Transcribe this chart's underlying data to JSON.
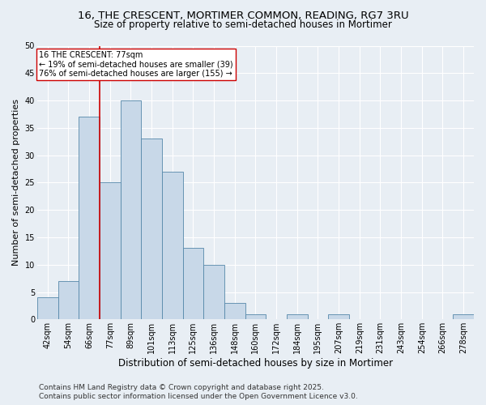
{
  "title_line1": "16, THE CRESCENT, MORTIMER COMMON, READING, RG7 3RU",
  "title_line2": "Size of property relative to semi-detached houses in Mortimer",
  "xlabel": "Distribution of semi-detached houses by size in Mortimer",
  "ylabel": "Number of semi-detached properties",
  "categories": [
    "42sqm",
    "54sqm",
    "66sqm",
    "77sqm",
    "89sqm",
    "101sqm",
    "113sqm",
    "125sqm",
    "136sqm",
    "148sqm",
    "160sqm",
    "172sqm",
    "184sqm",
    "195sqm",
    "207sqm",
    "219sqm",
    "231sqm",
    "243sqm",
    "254sqm",
    "266sqm",
    "278sqm"
  ],
  "values": [
    4,
    7,
    37,
    25,
    40,
    33,
    27,
    13,
    10,
    3,
    1,
    0,
    1,
    0,
    1,
    0,
    0,
    0,
    0,
    0,
    1
  ],
  "bar_color": "#c8d8e8",
  "bar_edge_color": "#5588aa",
  "background_color": "#e8eef4",
  "grid_color": "#ffffff",
  "vline_index": 3,
  "vline_color": "#cc0000",
  "annotation_text": "16 THE CRESCENT: 77sqm\n← 19% of semi-detached houses are smaller (39)\n76% of semi-detached houses are larger (155) →",
  "annotation_box_color": "#ffffff",
  "annotation_box_edge": "#cc0000",
  "ylim": [
    0,
    50
  ],
  "yticks": [
    0,
    5,
    10,
    15,
    20,
    25,
    30,
    35,
    40,
    45,
    50
  ],
  "footer_line1": "Contains HM Land Registry data © Crown copyright and database right 2025.",
  "footer_line2": "Contains public sector information licensed under the Open Government Licence v3.0.",
  "title_fontsize": 9.5,
  "subtitle_fontsize": 8.5,
  "axis_label_fontsize": 8,
  "tick_fontsize": 7,
  "annotation_fontsize": 7,
  "footer_fontsize": 6.5
}
